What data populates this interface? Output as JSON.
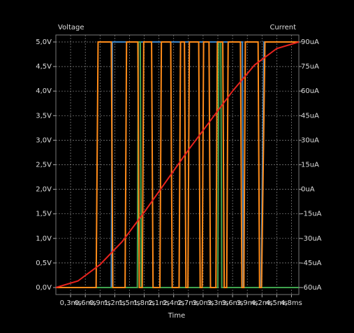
{
  "chart_data": {
    "type": "line",
    "y_label": "Voltage",
    "y2_label": "Current",
    "x_label": "Time",
    "xlim": [
      0,
      4.95
    ],
    "xticks": [
      {
        "value": 0.3,
        "label": "0,3ms"
      },
      {
        "value": 0.6,
        "label": "0,6ms"
      },
      {
        "value": 0.9,
        "label": "0,9ms"
      },
      {
        "value": 1.2,
        "label": "1,2ms"
      },
      {
        "value": 1.5,
        "label": "1,5ms"
      },
      {
        "value": 1.8,
        "label": "1,8ms"
      },
      {
        "value": 2.1,
        "label": "2,1ms"
      },
      {
        "value": 2.4,
        "label": "2,4ms"
      },
      {
        "value": 2.7,
        "label": "2,7ms"
      },
      {
        "value": 3.0,
        "label": "3,0ms"
      },
      {
        "value": 3.3,
        "label": "3,3ms"
      },
      {
        "value": 3.6,
        "label": "3,6ms"
      },
      {
        "value": 3.9,
        "label": "3,9ms"
      },
      {
        "value": 4.2,
        "label": "4,2ms"
      },
      {
        "value": 4.5,
        "label": "4,5ms"
      },
      {
        "value": 4.8,
        "label": "4,8ms"
      }
    ],
    "ylim": [
      0,
      5
    ],
    "yticks": [
      {
        "value": 0,
        "label": "0,0V"
      },
      {
        "value": 0.5,
        "label": "0,5V"
      },
      {
        "value": 1,
        "label": "1,0V"
      },
      {
        "value": 1.5,
        "label": "1,5V"
      },
      {
        "value": 2,
        "label": "2,0V"
      },
      {
        "value": 2.5,
        "label": "2,5V"
      },
      {
        "value": 3,
        "label": "3,0V"
      },
      {
        "value": 3.5,
        "label": "3,5V"
      },
      {
        "value": 4,
        "label": "4,0V"
      },
      {
        "value": 4.5,
        "label": "4,5V"
      },
      {
        "value": 5,
        "label": "5,0V"
      }
    ],
    "y2lim": [
      -60,
      90
    ],
    "y2ticks": [
      {
        "value": -60,
        "label": "-60uA"
      },
      {
        "value": -45,
        "label": "-45uA"
      },
      {
        "value": -30,
        "label": "-30uA"
      },
      {
        "value": -15,
        "label": "-15uA"
      },
      {
        "value": 0,
        "label": "0uA"
      },
      {
        "value": 15,
        "label": "15uA"
      },
      {
        "value": 30,
        "label": "30uA"
      },
      {
        "value": 45,
        "label": "45uA"
      },
      {
        "value": 60,
        "label": "60uA"
      },
      {
        "value": 75,
        "label": "75uA"
      },
      {
        "value": 90,
        "label": "90uA"
      }
    ],
    "grid": true,
    "series": [
      {
        "color": "#3d85c6",
        "x": [
          0,
          1.13,
          1.15,
          3.8,
          3.82,
          4.18,
          4.24,
          4.95
        ],
        "values": [
          0,
          0,
          5,
          5,
          0,
          0,
          5,
          5
        ]
      },
      {
        "color": "#3fa34d",
        "x": [
          0,
          1.66,
          1.68,
          1.72,
          1.74,
          3.3,
          3.32,
          3.36,
          3.38,
          4.95
        ],
        "values": [
          0,
          0,
          5,
          5,
          0,
          0,
          5,
          5,
          0,
          0
        ]
      },
      {
        "color": "#ff8c1a",
        "x": [
          0,
          0.82,
          0.86,
          1.13,
          1.16,
          1.41,
          1.44,
          1.67,
          1.7,
          1.76,
          1.79,
          1.95,
          1.98,
          2.12,
          2.15,
          2.34,
          2.37,
          2.51,
          2.54,
          2.62,
          2.65,
          2.69,
          2.72,
          2.91,
          2.94,
          2.98,
          3.01,
          3.12,
          3.15,
          3.26,
          3.29,
          3.4,
          3.43,
          3.48,
          3.51,
          3.76,
          3.79,
          3.83,
          3.86,
          4.12,
          4.15,
          4.19,
          4.26,
          4.95
        ],
        "values": [
          0,
          0,
          5,
          5,
          0,
          0,
          5,
          5,
          0,
          0,
          5,
          5,
          0,
          0,
          5,
          5,
          0,
          0,
          5,
          5,
          0,
          0,
          5,
          5,
          0,
          0,
          5,
          5,
          0,
          0,
          5,
          5,
          0,
          0,
          5,
          5,
          0,
          0,
          5,
          5,
          0,
          0,
          5,
          5
        ]
      },
      {
        "color": "#e8231e",
        "axis": "y2",
        "x": [
          0,
          0.45,
          0.9,
          1.35,
          1.8,
          2.25,
          2.7,
          3.15,
          3.6,
          4.05,
          4.5,
          4.95
        ],
        "values": [
          -60,
          -56,
          -46,
          -32,
          -14,
          5,
          24,
          42,
          60,
          76,
          86,
          90
        ]
      }
    ]
  }
}
